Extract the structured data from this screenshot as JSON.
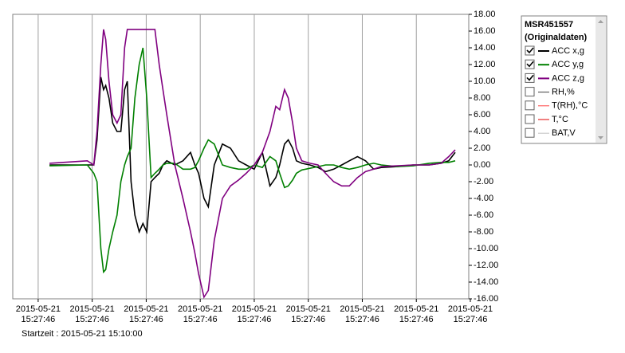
{
  "chart_data": {
    "type": "line",
    "x": [
      0.21,
      0.91,
      1.03,
      1.09,
      1.16,
      1.21,
      1.25,
      1.31,
      1.38,
      1.46,
      1.53,
      1.6,
      1.65,
      1.72,
      1.79,
      1.87,
      1.94,
      2.01,
      2.09,
      2.16,
      2.24,
      2.31,
      2.38,
      2.53,
      2.68,
      2.82,
      2.9,
      2.97,
      3.07,
      3.15,
      3.26,
      3.41,
      3.56,
      3.71,
      3.85,
      4,
      4.15,
      4.29,
      4.4,
      4.47,
      4.56,
      4.63,
      4.71,
      4.78,
      4.88,
      5.03,
      5.18,
      5.32,
      5.47,
      5.62,
      5.76,
      5.91,
      6.06,
      6.21,
      6.35,
      6.65,
      6.94,
      7.24,
      7.46,
      7.6,
      7.72
    ],
    "series": [
      {
        "name": "ACC x,g",
        "color": "#000000",
        "checked": true,
        "values": [
          0,
          0,
          0,
          3,
          10.5,
          9,
          9.5,
          8,
          5,
          4,
          4,
          9,
          10,
          -2,
          -6,
          -8,
          -7,
          -8,
          -2,
          -1.5,
          -1,
          0,
          0.5,
          0,
          0.5,
          1.5,
          0,
          -1,
          -4,
          -5,
          0,
          2.5,
          2,
          0.5,
          0,
          -0.5,
          1.5,
          -2.5,
          -1.5,
          0,
          2.5,
          3,
          2,
          0.5,
          0.2,
          0,
          -0.3,
          -0.8,
          -0.5,
          0,
          0.5,
          1,
          0.5,
          -0.5,
          -0.3,
          -0.2,
          0,
          0,
          0.2,
          0.5,
          1.5
        ]
      },
      {
        "name": "ACC y,g",
        "color": "#008000",
        "checked": true,
        "values": [
          -0.1,
          0,
          -1,
          -2,
          -10,
          -12.8,
          -12.5,
          -10,
          -8,
          -6,
          -2,
          0,
          1,
          2,
          8,
          12,
          14,
          8,
          -1.5,
          -1,
          -0.5,
          0,
          0.2,
          0.2,
          -0.5,
          -0.5,
          -0.3,
          0.5,
          2,
          3,
          2.5,
          0,
          -0.3,
          -0.5,
          -0.5,
          0,
          -0.3,
          1,
          0.5,
          -1,
          -2.7,
          -2.5,
          -1.8,
          -1,
          -0.6,
          -0.4,
          -0.2,
          0,
          0,
          -0.3,
          -0.5,
          -0.3,
          0,
          0.2,
          0,
          -0.2,
          -0.1,
          0.2,
          0.3,
          0.3,
          0.5
        ]
      },
      {
        "name": "ACC z,g",
        "color": "#800080",
        "checked": true,
        "values": [
          0.2,
          0.5,
          0,
          4,
          12,
          16.2,
          15,
          10,
          6,
          5,
          6,
          14,
          16.2,
          16.2,
          16.2,
          16.2,
          16.2,
          16.2,
          16.2,
          16.2,
          12,
          9,
          6,
          0,
          -4,
          -8,
          -10.5,
          -13,
          -15.8,
          -15,
          -9,
          -4,
          -2.5,
          -1.8,
          -1,
          0,
          1.5,
          4,
          7,
          6.6,
          9,
          8,
          5,
          2,
          0.5,
          0.2,
          0,
          -1,
          -2,
          -2.5,
          -2.5,
          -1.5,
          -0.8,
          -0.5,
          -0.2,
          -0.1,
          0,
          0,
          0.2,
          1,
          1.8
        ]
      }
    ],
    "other_channels": [
      {
        "name": "RH,%",
        "color": "#404040",
        "checked": false
      },
      {
        "name": "T(RH),°C",
        "color": "#ff4040",
        "checked": false
      },
      {
        "name": "T,°C",
        "color": "#e00000",
        "checked": false
      },
      {
        "name": "BAT,V",
        "color": "#c0c0c0",
        "checked": false
      }
    ],
    "legend_title": [
      "MSR451557",
      "(Originaldaten)"
    ],
    "xlim": [
      -0.5,
      8
    ],
    "xticks": [
      {
        "value": 0,
        "label": "2015-05-21\n15:27:46"
      },
      {
        "value": 1,
        "label": "2015-05-21\n15:27:46"
      },
      {
        "value": 2,
        "label": "2015-05-21\n15:27:46"
      },
      {
        "value": 3,
        "label": "2015-05-21\n15:27:46"
      },
      {
        "value": 4,
        "label": "2015-05-21\n15:27:46"
      },
      {
        "value": 5,
        "label": "2015-05-21\n15:27:46"
      },
      {
        "value": 6,
        "label": "2015-05-21\n15:27:46"
      },
      {
        "value": 7,
        "label": "2015-05-21\n15:27:46"
      },
      {
        "value": 8,
        "label": "2015-05-21\n15:27:46"
      }
    ],
    "ylim": [
      -16,
      18
    ],
    "yticks": [
      {
        "value": 18,
        "label": "18.00"
      },
      {
        "value": 16,
        "label": "16.00"
      },
      {
        "value": 14,
        "label": "14.00"
      },
      {
        "value": 12,
        "label": "12.00"
      },
      {
        "value": 10,
        "label": "10.00"
      },
      {
        "value": 8,
        "label": "8.00"
      },
      {
        "value": 6,
        "label": "6.00"
      },
      {
        "value": 4,
        "label": "4.00"
      },
      {
        "value": 2,
        "label": "2.00"
      },
      {
        "value": 0,
        "label": "0.00"
      },
      {
        "value": -2,
        "label": "-2.00"
      },
      {
        "value": -4,
        "label": "-4.00"
      },
      {
        "value": -6,
        "label": "-6.00"
      },
      {
        "value": -8,
        "label": "-8.00"
      },
      {
        "value": -10,
        "label": "-10.00"
      },
      {
        "value": -12,
        "label": "-12.00"
      },
      {
        "value": -14,
        "label": "-14.00"
      },
      {
        "value": -16,
        "label": "-16.00"
      }
    ],
    "grid": true,
    "footer": "Startzeit : 2015-05-21 15:10:00"
  }
}
